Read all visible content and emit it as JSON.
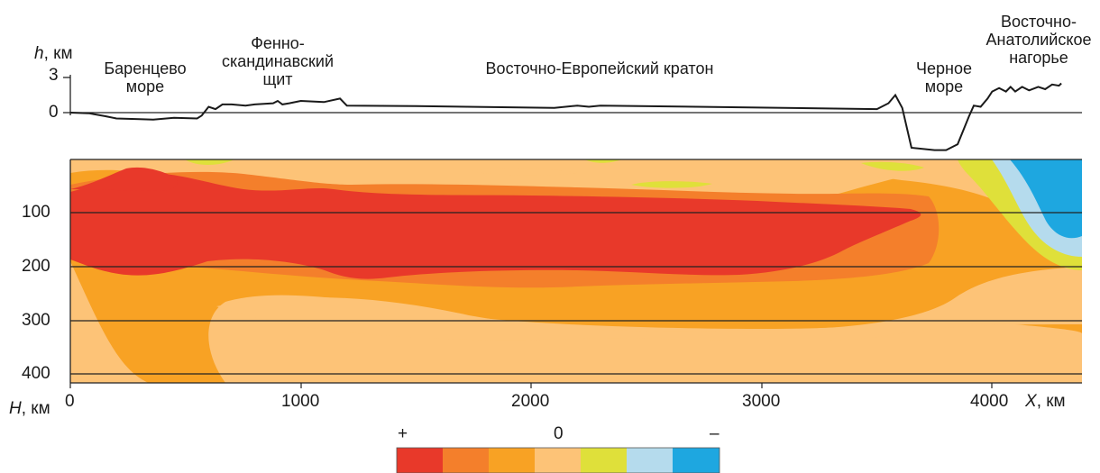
{
  "topo": {
    "h_label": "h",
    "h_unit": ", км",
    "ticks": [
      3,
      0
    ],
    "regions": [
      {
        "name": "barents",
        "lines": [
          "Баренцево",
          "море"
        ]
      },
      {
        "name": "fennoscandia",
        "lines": [
          "Фенно-",
          "скандинавский",
          "щит"
        ]
      },
      {
        "name": "craton",
        "lines": [
          "Восточно-Европейский кратон"
        ]
      },
      {
        "name": "black-sea",
        "lines": [
          "Черное",
          "море"
        ]
      },
      {
        "name": "anatolia",
        "lines": [
          "Восточно-",
          "Анатолийское",
          "нагорье"
        ]
      }
    ],
    "profile_km_vs_h": [
      [
        0,
        0.0
      ],
      [
        80,
        -0.05
      ],
      [
        150,
        -0.3
      ],
      [
        200,
        -0.5
      ],
      [
        300,
        -0.55
      ],
      [
        360,
        -0.6
      ],
      [
        450,
        -0.45
      ],
      [
        550,
        -0.5
      ],
      [
        570,
        -0.25
      ],
      [
        600,
        0.5
      ],
      [
        630,
        0.3
      ],
      [
        660,
        0.7
      ],
      [
        700,
        0.7
      ],
      [
        760,
        0.6
      ],
      [
        800,
        0.7
      ],
      [
        880,
        0.8
      ],
      [
        900,
        1.0
      ],
      [
        920,
        0.7
      ],
      [
        950,
        0.8
      ],
      [
        1000,
        1.0
      ],
      [
        1100,
        0.9
      ],
      [
        1170,
        1.2
      ],
      [
        1200,
        0.6
      ],
      [
        1500,
        0.55
      ],
      [
        2100,
        0.4
      ],
      [
        2200,
        0.6
      ],
      [
        2250,
        0.5
      ],
      [
        2300,
        0.6
      ],
      [
        3500,
        0.3
      ],
      [
        3550,
        0.8
      ],
      [
        3580,
        1.5
      ],
      [
        3610,
        0.4
      ],
      [
        3650,
        -3.0
      ],
      [
        3750,
        -3.2
      ],
      [
        3800,
        -3.2
      ],
      [
        3850,
        -2.7
      ],
      [
        3900,
        -0.3
      ],
      [
        3920,
        0.6
      ],
      [
        3950,
        0.5
      ],
      [
        3980,
        1.2
      ],
      [
        4000,
        1.8
      ],
      [
        4030,
        2.1
      ],
      [
        4060,
        1.8
      ],
      [
        4080,
        2.2
      ],
      [
        4100,
        1.8
      ],
      [
        4130,
        2.2
      ],
      [
        4160,
        1.9
      ],
      [
        4200,
        2.2
      ],
      [
        4230,
        2.0
      ],
      [
        4260,
        2.4
      ],
      [
        4290,
        2.3
      ],
      [
        4300,
        2.5
      ]
    ]
  },
  "section": {
    "H_label": "H",
    "H_unit": ", км",
    "X_label": "X",
    "X_unit": ", км",
    "depth_ticks": [
      100,
      200,
      300,
      400
    ],
    "x_ticks": [
      0,
      1000,
      2000,
      3000,
      4000
    ]
  },
  "legend": {
    "plus": "+",
    "zero": "0",
    "minus": "–",
    "colors": [
      "#e8392a",
      "#f47f2b",
      "#f8a224",
      "#fdc377",
      "#dfe03a",
      "#b5dbed",
      "#1ea7e0"
    ]
  }
}
